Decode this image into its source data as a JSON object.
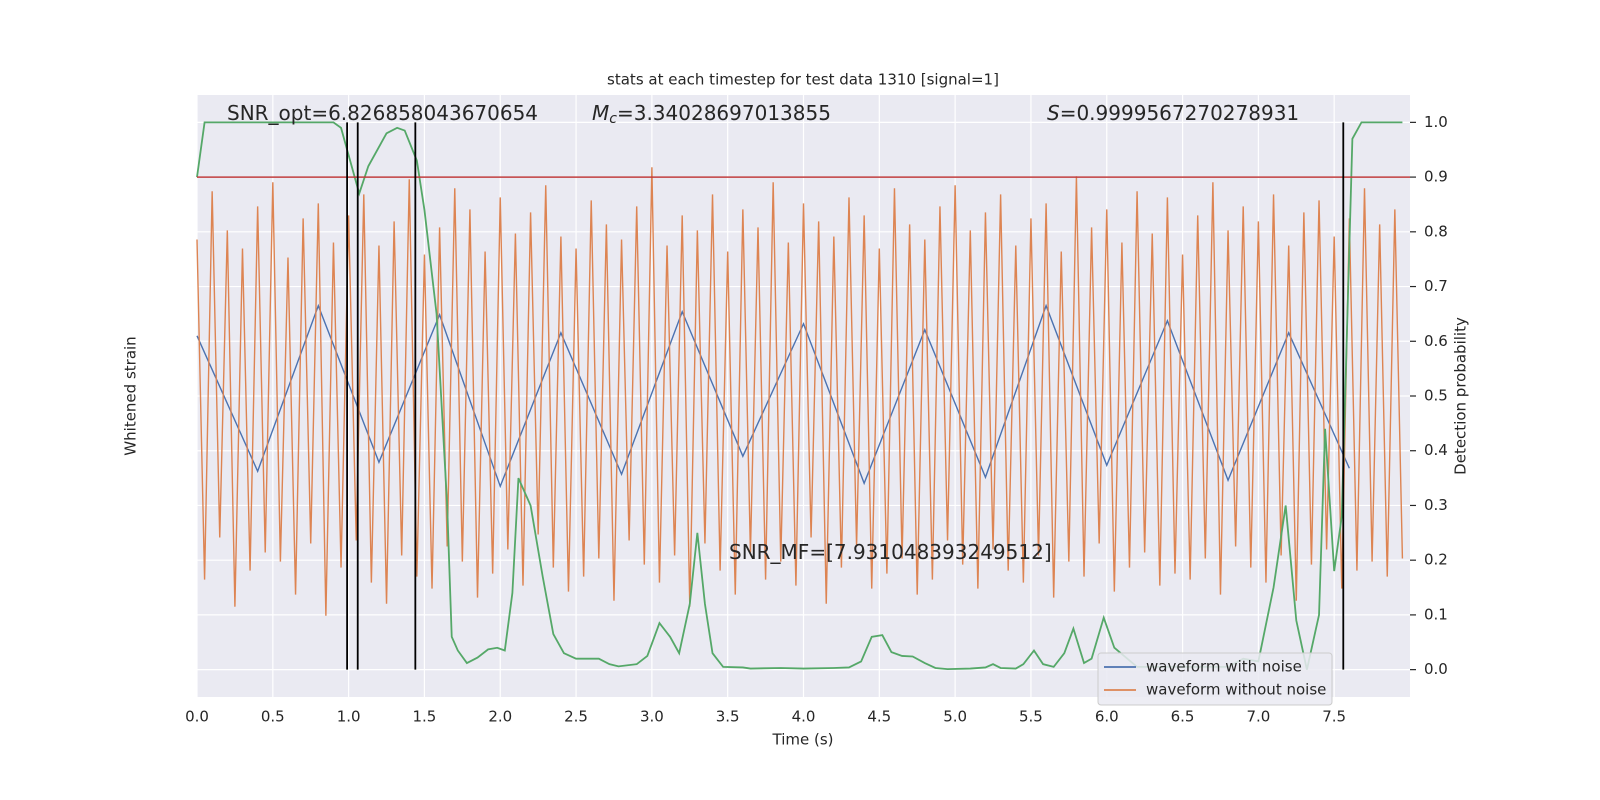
{
  "chart_data": {
    "type": "line",
    "title": "stats at each timestep for test data 1310 [signal=1]",
    "xlabel": "Time (s)",
    "ylabel": "Whitened strain",
    "y2label": "Detection probability",
    "x": [
      0,
      0.05,
      0.1,
      0.15,
      0.2,
      0.25,
      0.3,
      0.35,
      0.4,
      0.45,
      0.5,
      0.55,
      0.6,
      0.65,
      0.7,
      0.75,
      0.8,
      0.85,
      0.9,
      0.95,
      1,
      1.05,
      1.1,
      1.15,
      1.2,
      1.25,
      1.3,
      1.35,
      1.4,
      1.45,
      1.5,
      1.55,
      1.6,
      1.65,
      1.7,
      1.75,
      1.8,
      1.85,
      1.9,
      1.95,
      2,
      2.05,
      2.1,
      2.15,
      2.2,
      2.25,
      2.3,
      2.35,
      2.4,
      2.45,
      2.5,
      2.55,
      2.6,
      2.65,
      2.7,
      2.75,
      2.8,
      2.85,
      2.9,
      2.95,
      3,
      3.05,
      3.1,
      3.15,
      3.2,
      3.25,
      3.3,
      3.35,
      3.4,
      3.45,
      3.5,
      3.55,
      3.6,
      3.65,
      3.7,
      3.75,
      3.8,
      3.85,
      3.9,
      3.95,
      4,
      4.05,
      4.1,
      4.15,
      4.2,
      4.25,
      4.3,
      4.35,
      4.4,
      4.45,
      4.5,
      4.55,
      4.6,
      4.65,
      4.7,
      4.75,
      4.8,
      4.85,
      4.9,
      4.95,
      5,
      5.05,
      5.1,
      5.15,
      5.2,
      5.25,
      5.3,
      5.35,
      5.4,
      5.45,
      5.5,
      5.55,
      5.6,
      5.65,
      5.7,
      5.75,
      5.8,
      5.85,
      5.9,
      5.95,
      6,
      6.05,
      6.1,
      6.15,
      6.2,
      6.25,
      6.3,
      6.35,
      6.4,
      6.45,
      6.5,
      6.55,
      6.6,
      6.65,
      6.7,
      6.75,
      6.8,
      6.85,
      6.9,
      6.95,
      7,
      7.05,
      7.1,
      7.15,
      7.2,
      7.25,
      7.3,
      7.35,
      7.4,
      7.45,
      7.5,
      7.55,
      7.6,
      7.65,
      7.7,
      7.75,
      7.8,
      7.85,
      7.9,
      7.95
    ],
    "series": [
      {
        "name": "waveform with noise",
        "color": "#4c72b0",
        "x": [
          0,
          0.4,
          0.8,
          1.2,
          1.6,
          2,
          2.4,
          2.8,
          3.2,
          3.6,
          4,
          4.4,
          4.8,
          5.2,
          5.6,
          6,
          6.4,
          6.8,
          7.2,
          7.6
        ],
        "values": [
          0.2,
          -0.25,
          0.3,
          -0.22,
          0.27,
          -0.3,
          0.21,
          -0.26,
          0.28,
          -0.2,
          0.24,
          -0.29,
          0.22,
          -0.27,
          0.3,
          -0.23,
          0.25,
          -0.28,
          0.21,
          -0.24
        ]
      },
      {
        "name": "waveform without noise",
        "color": "#dd8452",
        "values": [
          0.52,
          -0.61,
          0.68,
          -0.47,
          0.55,
          -0.7,
          0.49,
          -0.58,
          0.63,
          -0.52,
          0.71,
          -0.55,
          0.46,
          -0.66,
          0.59,
          -0.49,
          0.64,
          -0.73,
          0.51,
          -0.57,
          0.6,
          -0.48,
          0.67,
          -0.62,
          0.5,
          -0.69,
          0.58,
          -0.53,
          0.72,
          -0.6,
          0.47,
          -0.64,
          0.56,
          -0.5,
          0.69,
          -0.55,
          0.62,
          -0.67,
          0.48,
          -0.59,
          0.66,
          -0.51,
          0.54,
          -0.63,
          0.61,
          -0.46,
          0.7,
          -0.57,
          0.53,
          -0.65,
          0.49,
          -0.6,
          0.65,
          -0.54,
          0.57,
          -0.68,
          0.52,
          -0.48,
          0.63,
          -0.56,
          0.76,
          -0.62,
          0.5,
          -0.53,
          0.6,
          -0.7,
          0.55,
          -0.49,
          0.67,
          -0.58,
          0.48,
          -0.66,
          0.62,
          -0.52,
          0.56,
          -0.61,
          0.71,
          -0.55,
          0.51,
          -0.63,
          0.64,
          -0.47,
          0.58,
          -0.69,
          0.53,
          -0.57,
          0.66,
          -0.5,
          0.6,
          -0.64,
          0.49,
          -0.59,
          0.69,
          -0.54,
          0.57,
          -0.66,
          0.52,
          -0.61,
          0.63,
          -0.48,
          0.7,
          -0.56,
          0.55,
          -0.64,
          0.61,
          -0.51,
          0.67,
          -0.58,
          0.5,
          -0.62,
          0.59,
          -0.53,
          0.64,
          -0.67,
          0.48,
          -0.55,
          0.73,
          -0.6,
          0.56,
          -0.49,
          0.62,
          -0.65,
          0.51,
          -0.57,
          0.68,
          -0.52,
          0.54,
          -0.63,
          0.66,
          -0.59,
          0.47,
          -0.61,
          0.6,
          -0.54,
          0.71,
          -0.66,
          0.55,
          -0.5,
          0.63,
          -0.57,
          0.58,
          -0.62,
          0.67,
          -0.53,
          0.5,
          -0.68,
          0.61,
          -0.56,
          0.65,
          -0.51,
          0.53,
          -0.64,
          0.59,
          -0.58,
          0.69,
          -0.55,
          0.57,
          -0.6,
          0.62,
          -0.54
        ]
      },
      {
        "name": "detection probability",
        "color": "#55a868",
        "axis": "y2",
        "in_legend": false,
        "x": [
          0.0,
          0.05,
          0.9,
          0.95,
          1.0,
          1.07,
          1.13,
          1.25,
          1.32,
          1.37,
          1.45,
          1.5,
          1.58,
          1.65,
          1.68,
          1.72,
          1.78,
          1.85,
          1.92,
          1.98,
          2.03,
          2.08,
          2.12,
          2.2,
          2.28,
          2.35,
          2.42,
          2.5,
          2.65,
          2.72,
          2.78,
          2.9,
          2.97,
          3.05,
          3.12,
          3.18,
          3.25,
          3.3,
          3.35,
          3.4,
          3.47,
          3.6,
          3.65,
          3.85,
          4.0,
          4.2,
          4.3,
          4.38,
          4.45,
          4.52,
          4.58,
          4.65,
          4.72,
          4.8,
          4.87,
          4.95,
          5.1,
          5.2,
          5.25,
          5.3,
          5.4,
          5.45,
          5.52,
          5.58,
          5.65,
          5.72,
          5.78,
          5.85,
          5.9,
          5.98,
          6.05,
          6.2,
          6.8,
          6.9,
          7.0,
          7.1,
          7.18,
          7.25,
          7.32,
          7.4,
          7.44,
          7.5,
          7.55,
          7.62,
          7.68,
          7.95
        ],
        "values": [
          0.9,
          1.0,
          1.0,
          0.99,
          0.94,
          0.87,
          0.92,
          0.98,
          0.99,
          0.985,
          0.93,
          0.84,
          0.65,
          0.3,
          0.06,
          0.035,
          0.012,
          0.022,
          0.037,
          0.04,
          0.035,
          0.14,
          0.35,
          0.3,
          0.17,
          0.065,
          0.03,
          0.02,
          0.02,
          0.01,
          0.006,
          0.01,
          0.025,
          0.085,
          0.06,
          0.03,
          0.12,
          0.25,
          0.12,
          0.03,
          0.005,
          0.004,
          0.002,
          0.003,
          0.002,
          0.003,
          0.004,
          0.015,
          0.06,
          0.063,
          0.032,
          0.025,
          0.024,
          0.012,
          0.003,
          0.001,
          0.002,
          0.004,
          0.01,
          0.003,
          0.002,
          0.01,
          0.035,
          0.01,
          0.005,
          0.03,
          0.075,
          0.012,
          0.02,
          0.095,
          0.04,
          0.005,
          0.005,
          0.02,
          0.015,
          0.15,
          0.3,
          0.09,
          0.0,
          0.1,
          0.44,
          0.18,
          0.28,
          0.97,
          1.0,
          1.0
        ]
      }
    ],
    "threshold": {
      "value": 0.9,
      "axis": "y2",
      "color": "#c03d3e"
    },
    "vlines": {
      "x": [
        0.99,
        1.06,
        1.44,
        7.56
      ],
      "span": [
        0,
        1
      ],
      "axis": "y2",
      "color": "#000000"
    },
    "annotations": [
      {
        "text": "SNR_opt=6.826858043670654"
      },
      {
        "symbol": "M",
        "subscript": "c",
        "text": "=3.34028697013855"
      },
      {
        "symbol": "S",
        "text": "=0.9999567270278931"
      },
      {
        "text": "SNR_MF=[7.931048393249512]"
      }
    ],
    "xlim": [
      0,
      8
    ],
    "xticks": [
      {
        "value": 0,
        "label": "0.0"
      },
      0.5,
      {
        "value": 1,
        "label": "1.0"
      },
      1.5,
      {
        "value": 2,
        "label": "2.0"
      },
      2.5,
      {
        "value": 3,
        "label": "3.0"
      },
      3.5,
      {
        "value": 4,
        "label": "4.0"
      },
      4.5,
      {
        "value": 5,
        "label": "5.0"
      },
      5.5,
      {
        "value": 6,
        "label": "6.0"
      },
      6.5,
      {
        "value": 7,
        "label": "7.0"
      },
      7.5
    ],
    "ylim": [
      -1,
      1
    ],
    "y2lim": [
      -0.05,
      1.05
    ],
    "y2ticks": [
      {
        "value": 0,
        "label": "0.0"
      },
      0.1,
      0.2,
      0.3,
      0.4,
      0.5,
      0.6,
      0.7,
      0.8,
      0.9,
      {
        "value": 1,
        "label": "1.0"
      }
    ],
    "grid": true,
    "legend": "lower right"
  }
}
